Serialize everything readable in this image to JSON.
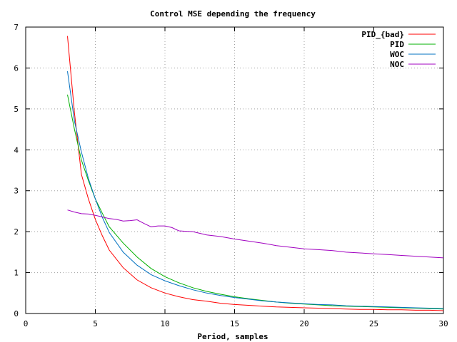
{
  "chart_data": {
    "type": "line",
    "title": "Control MSE depending the frequency",
    "xlabel": "Period, samples",
    "ylabel": "",
    "xlim": [
      0,
      30
    ],
    "ylim": [
      0,
      7
    ],
    "xticks": [
      0,
      5,
      10,
      15,
      20,
      25,
      30
    ],
    "yticks": [
      0,
      1,
      2,
      3,
      4,
      5,
      6,
      7
    ],
    "xtick_labels": [
      "0",
      "5",
      "10",
      "15",
      "20",
      "25",
      "30"
    ],
    "ytick_labels": [
      "0",
      "1",
      "2",
      "3",
      "4",
      "5",
      "6",
      "7"
    ],
    "grid": true,
    "legend_position": "top-right",
    "series": [
      {
        "name": "PID_{bad}",
        "color": "#ff0000",
        "x": [
          3,
          3.5,
          4,
          4.5,
          5,
          5.5,
          6,
          7,
          8,
          9,
          10,
          11,
          12,
          13,
          14,
          15,
          16,
          17,
          18,
          19,
          20,
          21,
          22,
          23,
          24,
          25,
          26,
          27,
          28,
          29,
          30
        ],
        "y": [
          6.78,
          4.9,
          3.4,
          2.8,
          2.3,
          1.9,
          1.55,
          1.12,
          0.82,
          0.63,
          0.5,
          0.41,
          0.34,
          0.3,
          0.25,
          0.22,
          0.2,
          0.18,
          0.16,
          0.15,
          0.14,
          0.13,
          0.12,
          0.11,
          0.1,
          0.1,
          0.09,
          0.09,
          0.08,
          0.08,
          0.07
        ]
      },
      {
        "name": "PID",
        "color": "#00b000",
        "x": [
          3,
          3.5,
          4,
          4.5,
          5,
          5.5,
          6,
          7,
          8,
          9,
          10,
          11,
          12,
          13,
          14,
          15,
          16,
          17,
          18,
          19,
          20,
          21,
          22,
          23,
          24,
          25,
          26,
          27,
          28,
          29,
          30
        ],
        "y": [
          5.35,
          4.5,
          3.75,
          3.25,
          2.8,
          2.45,
          2.12,
          1.72,
          1.38,
          1.1,
          0.9,
          0.75,
          0.63,
          0.54,
          0.47,
          0.41,
          0.36,
          0.32,
          0.28,
          0.25,
          0.23,
          0.21,
          0.19,
          0.18,
          0.17,
          0.16,
          0.15,
          0.14,
          0.13,
          0.12,
          0.11
        ]
      },
      {
        "name": "WOC",
        "color": "#0070c0",
        "x": [
          3,
          3.5,
          4,
          4.5,
          5,
          5.5,
          6,
          7,
          8,
          9,
          10,
          11,
          12,
          13,
          14,
          15,
          16,
          17,
          18,
          19,
          20,
          21,
          22,
          23,
          24,
          25,
          26,
          27,
          28,
          29,
          30
        ],
        "y": [
          5.92,
          4.7,
          3.95,
          3.3,
          2.8,
          2.35,
          1.98,
          1.5,
          1.18,
          0.95,
          0.8,
          0.68,
          0.58,
          0.5,
          0.44,
          0.39,
          0.35,
          0.31,
          0.28,
          0.26,
          0.24,
          0.22,
          0.21,
          0.19,
          0.18,
          0.17,
          0.16,
          0.15,
          0.14,
          0.13,
          0.12
        ]
      },
      {
        "name": "NOC",
        "color": "#a000c0",
        "x": [
          3,
          3.5,
          4,
          4.5,
          5,
          5.5,
          6,
          6.5,
          7,
          7.5,
          8,
          8.5,
          9,
          9.5,
          10,
          10.5,
          11,
          12,
          13,
          14,
          15,
          16,
          17,
          18,
          19,
          20,
          21,
          22,
          23,
          24,
          25,
          26,
          27,
          28,
          29,
          30
        ],
        "y": [
          2.53,
          2.48,
          2.44,
          2.43,
          2.4,
          2.36,
          2.32,
          2.3,
          2.26,
          2.27,
          2.29,
          2.2,
          2.12,
          2.14,
          2.14,
          2.1,
          2.02,
          2.0,
          1.92,
          1.88,
          1.82,
          1.77,
          1.72,
          1.66,
          1.62,
          1.58,
          1.56,
          1.54,
          1.5,
          1.48,
          1.46,
          1.44,
          1.42,
          1.4,
          1.38,
          1.36
        ]
      }
    ]
  }
}
